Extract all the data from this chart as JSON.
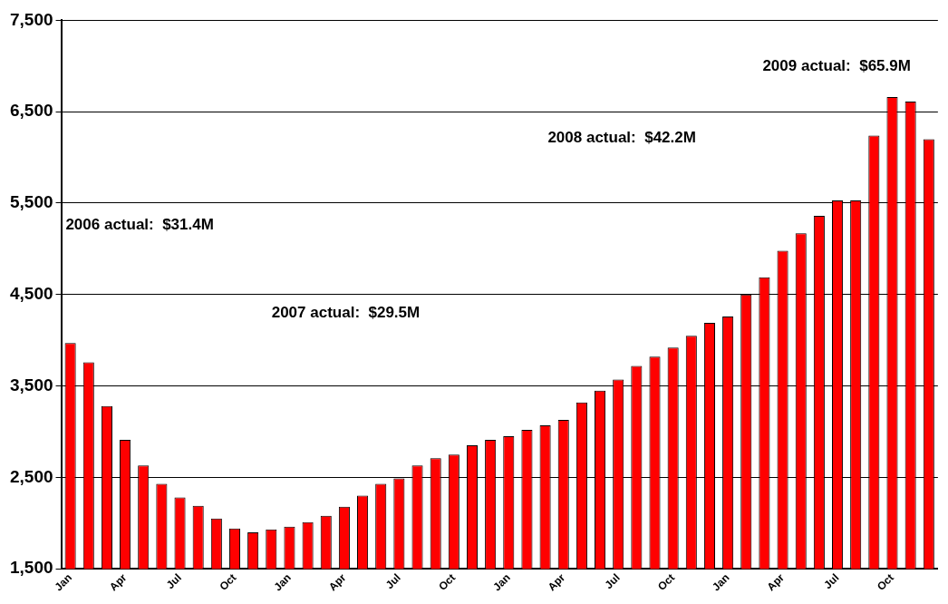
{
  "chart_data": {
    "type": "bar",
    "categories": [
      "Jan",
      null,
      null,
      "Apr",
      null,
      null,
      "Jul",
      null,
      null,
      "Oct",
      null,
      null,
      "Jan",
      null,
      null,
      "Apr",
      null,
      null,
      "Jul",
      null,
      null,
      "Oct",
      null,
      null,
      "Jan",
      null,
      null,
      "Apr",
      null,
      null,
      "Jul",
      null,
      null,
      "Oct",
      null,
      null,
      "Jan",
      null,
      null,
      "Apr",
      null,
      null,
      "Jul",
      null,
      null,
      "Oct",
      null,
      null
    ],
    "values": [
      3970,
      3760,
      3280,
      2910,
      2630,
      2430,
      2280,
      2190,
      2050,
      1940,
      1900,
      1930,
      1960,
      2010,
      2080,
      2180,
      2300,
      2430,
      2490,
      2630,
      2710,
      2750,
      2850,
      2910,
      2950,
      3020,
      3070,
      3130,
      3320,
      3450,
      3570,
      3720,
      3820,
      3920,
      4050,
      4190,
      4260,
      4500,
      4690,
      4980,
      5170,
      5360,
      5530,
      5530,
      6240,
      6660,
      6610,
      6200
    ],
    "color": "#ff0000",
    "ylim": [
      1500,
      7500
    ],
    "yticks": [
      {
        "value": 1500,
        "label": "1,500"
      },
      {
        "value": 2500,
        "label": "2,500"
      },
      {
        "value": 3500,
        "label": "3,500"
      },
      {
        "value": 4500,
        "label": "4,500"
      },
      {
        "value": 5500,
        "label": "5,500"
      },
      {
        "value": 6500,
        "label": "6,500"
      },
      {
        "value": 7500,
        "label": "7,500"
      }
    ],
    "grid": "y",
    "annotations": [
      "2006 actual:  $31.4M",
      "2007 actual:  $29.5M",
      "2008 actual:  $42.2M",
      "2009 actual:  $65.9M"
    ]
  }
}
